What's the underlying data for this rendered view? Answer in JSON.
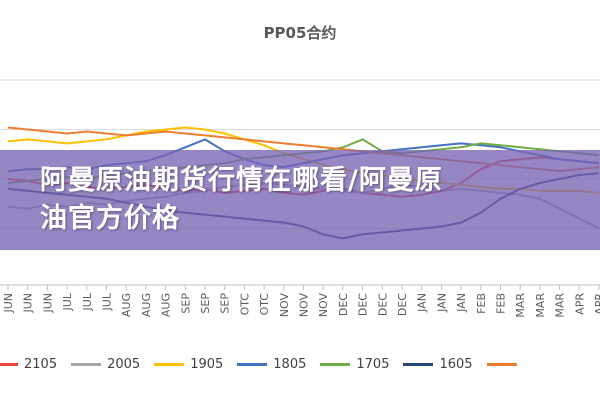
{
  "banner": {
    "line1": "阿曼原油期货行情在哪看/阿曼原",
    "line2": "油官方价格"
  },
  "chart_data": {
    "type": "line",
    "title": "PP05合约",
    "grid": true,
    "legend_position": "bottom",
    "x_tick_labels": [
      "JUN",
      "JUN",
      "JUN",
      "JUL",
      "JUL",
      "JUL",
      "AUG",
      "AUG",
      "AUG",
      "SEP",
      "SEP",
      "SEP",
      "OTC",
      "OTC",
      "NOV",
      "NOV",
      "NOV",
      "DEC",
      "DEC",
      "DEC",
      "DEC",
      "JAN",
      "JAN",
      "JAN",
      "FEB",
      "FEB",
      "MAR",
      "MAR",
      "MAR",
      "APR",
      "APR"
    ],
    "series": [
      {
        "name": "2105",
        "color": "#e8453c",
        "values": [
          0.5,
          0.49,
          0.47,
          0.48,
          0.46,
          0.45,
          0.46,
          0.47,
          0.45,
          0.44,
          0.45,
          0.43,
          0.44,
          0.45,
          0.43,
          0.42,
          0.44,
          0.45,
          0.43,
          0.42,
          0.41,
          0.42,
          0.44,
          0.48,
          0.55,
          0.59,
          0.6,
          0.61,
          0.6,
          0.59,
          0.58
        ]
      },
      {
        "name": "2005",
        "color": "#a6a6a6",
        "values": [
          0.36,
          0.35,
          0.37,
          0.36,
          0.38,
          0.37,
          0.39,
          0.4,
          0.41,
          0.43,
          0.44,
          0.46,
          0.47,
          0.48,
          0.47,
          0.46,
          0.45,
          0.44,
          0.43,
          0.45,
          0.47,
          0.46,
          0.44,
          0.45,
          0.44,
          0.43,
          0.42,
          0.4,
          0.35,
          0.3,
          0.25
        ]
      },
      {
        "name": "1905",
        "color": "#ffc000",
        "values": [
          0.69,
          0.7,
          0.69,
          0.68,
          0.69,
          0.7,
          0.72,
          0.74,
          0.75,
          0.76,
          0.75,
          0.73,
          0.7,
          0.67,
          0.63,
          0.6,
          0.57,
          0.55,
          0.53,
          0.52,
          0.5,
          0.49,
          0.48,
          0.47,
          0.46,
          0.45,
          0.45,
          0.44,
          0.44,
          0.44,
          0.43
        ]
      },
      {
        "name": "1805",
        "color": "#4472c4",
        "values": [
          0.54,
          0.55,
          0.55,
          0.56,
          0.55,
          0.57,
          0.58,
          0.59,
          0.62,
          0.66,
          0.7,
          0.64,
          0.6,
          0.57,
          0.56,
          0.58,
          0.6,
          0.62,
          0.63,
          0.64,
          0.65,
          0.66,
          0.67,
          0.68,
          0.67,
          0.66,
          0.64,
          0.62,
          0.6,
          0.59,
          0.58
        ]
      },
      {
        "name": "1705",
        "color": "#70ad47",
        "values": [
          0.48,
          0.49,
          0.5,
          0.51,
          0.5,
          0.52,
          0.53,
          0.54,
          0.55,
          0.56,
          0.57,
          0.58,
          0.6,
          0.61,
          0.62,
          0.63,
          0.64,
          0.66,
          0.7,
          0.64,
          0.63,
          0.64,
          0.65,
          0.66,
          0.68,
          0.67,
          0.66,
          0.65,
          0.64,
          0.63,
          0.62
        ]
      },
      {
        "name": "1605",
        "color": "#264478",
        "values": [
          0.45,
          0.44,
          0.43,
          0.42,
          0.41,
          0.4,
          0.38,
          0.36,
          0.34,
          0.33,
          0.32,
          0.31,
          0.3,
          0.29,
          0.28,
          0.26,
          0.22,
          0.2,
          0.22,
          0.23,
          0.24,
          0.25,
          0.26,
          0.28,
          0.33,
          0.4,
          0.45,
          0.48,
          0.5,
          0.52,
          0.53
        ]
      },
      {
        "name": "",
        "color": "#ed7d31",
        "values": [
          0.76,
          0.75,
          0.74,
          0.73,
          0.74,
          0.73,
          0.72,
          0.73,
          0.74,
          0.73,
          0.72,
          0.71,
          0.7,
          0.69,
          0.68,
          0.67,
          0.66,
          0.65,
          0.64,
          0.63,
          0.62,
          0.61,
          0.6,
          0.59,
          0.58,
          0.57,
          0.56,
          0.55,
          0.54,
          0.55,
          0.56
        ]
      }
    ]
  }
}
